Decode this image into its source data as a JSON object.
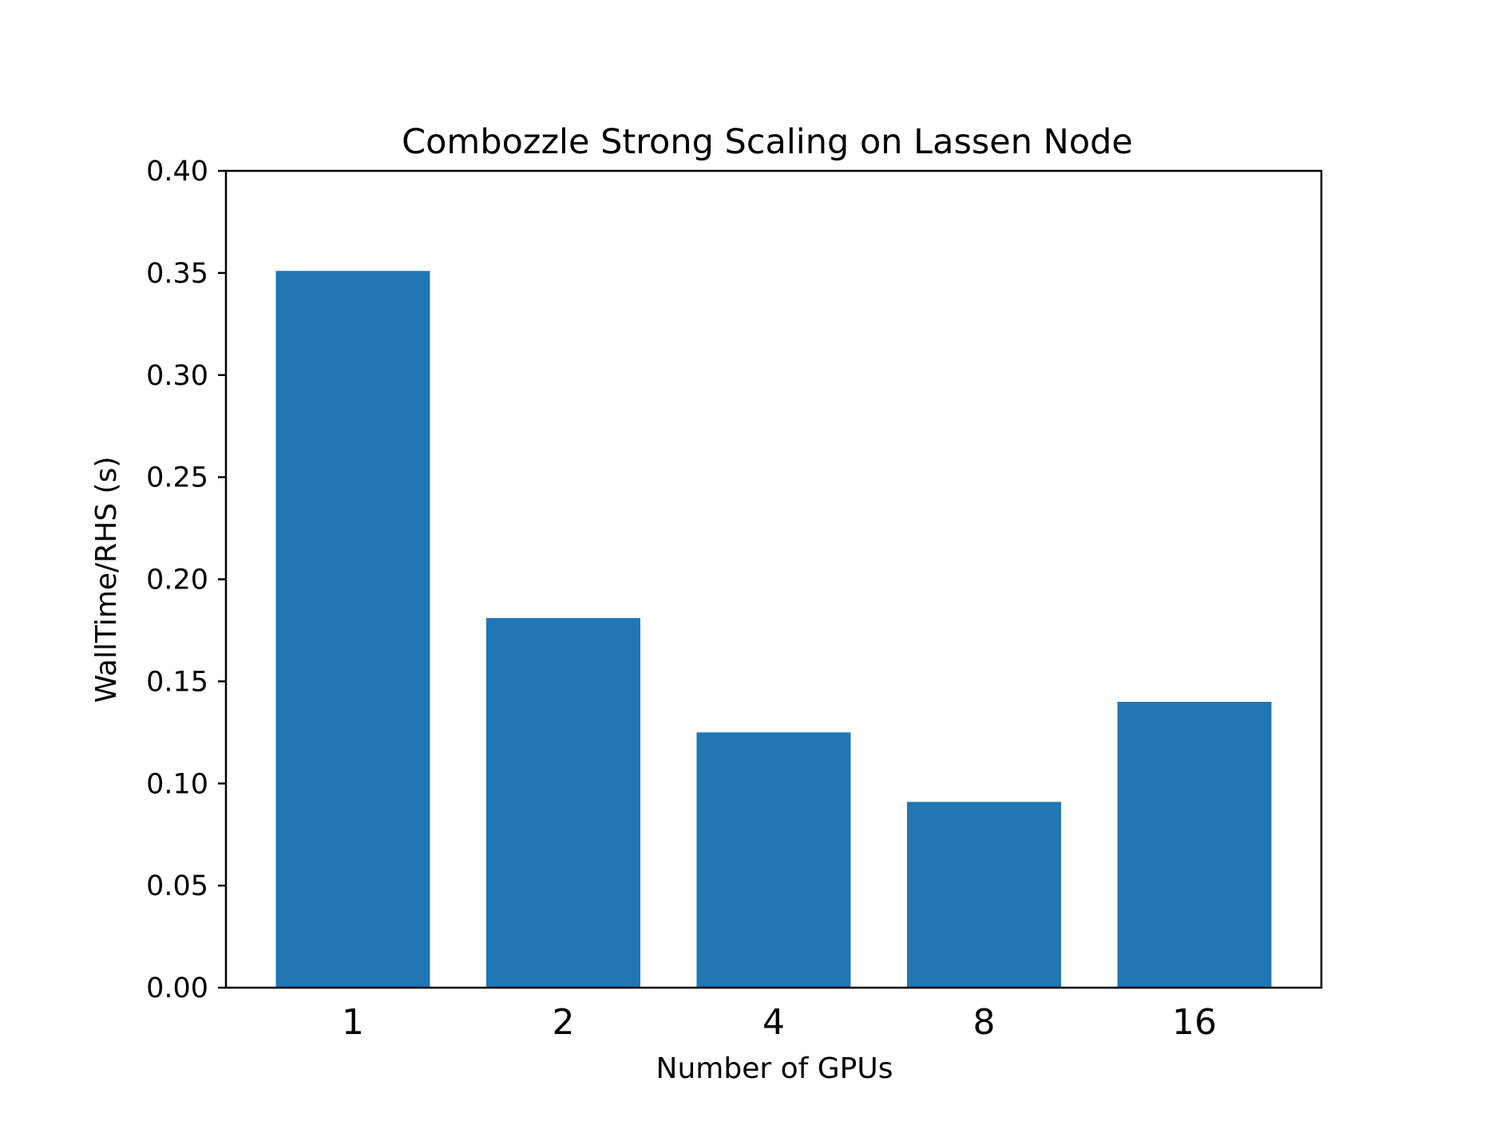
{
  "chart_data": {
    "type": "bar",
    "title": "Combozzle Strong Scaling on Lassen Node",
    "xlabel": "Number of GPUs",
    "ylabel": "WallTime/RHS (s)",
    "categories": [
      "1",
      "2",
      "4",
      "8",
      "16"
    ],
    "values": [
      0.351,
      0.181,
      0.125,
      0.091,
      0.14
    ],
    "ylim": [
      0,
      0.4
    ],
    "yticks": [
      "0.00",
      "0.05",
      "0.10",
      "0.15",
      "0.20",
      "0.25",
      "0.30",
      "0.35",
      "0.40"
    ],
    "grid": false,
    "legend": "none",
    "bar_color": "#2077b4",
    "axis_color": "#000000"
  }
}
